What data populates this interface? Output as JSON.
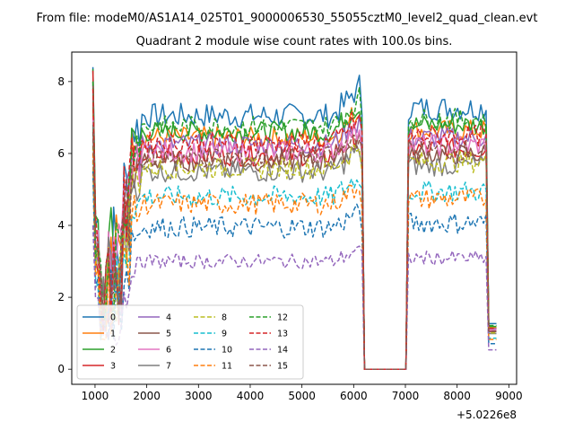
{
  "suptitle": "From file: modeM0/AS1A14_025T01_9000006530_55055cztM0_level2_quad_clean.evt",
  "chart_data": {
    "type": "line",
    "title": "Quadrant 2 module wise count rates with 100.0s bins.",
    "xlabel": "",
    "ylabel": "",
    "x_offset_label": "+5.0226e8",
    "xlim": [
      550,
      9150
    ],
    "ylim": [
      -0.42,
      8.82
    ],
    "xticks": [
      1000,
      2000,
      3000,
      4000,
      5000,
      6000,
      7000,
      8000,
      9000
    ],
    "yticks": [
      0,
      2,
      4,
      6,
      8
    ],
    "grid": false,
    "legend": {
      "placement": "lower-left",
      "columns": 4
    },
    "series": [
      {
        "name": "0",
        "color": "#1f77b4",
        "dash": "solid",
        "level": 7.05,
        "first": 8.4,
        "amp": 0.35
      },
      {
        "name": "1",
        "color": "#ff7f0e",
        "dash": "solid",
        "level": 6.45,
        "first": 7.3,
        "amp": 0.3
      },
      {
        "name": "2",
        "color": "#2ca02c",
        "dash": "solid",
        "level": 6.6,
        "first": 8.35,
        "amp": 0.3
      },
      {
        "name": "3",
        "color": "#d62728",
        "dash": "solid",
        "level": 5.95,
        "first": 8.3,
        "amp": 0.3
      },
      {
        "name": "4",
        "color": "#9467bd",
        "dash": "solid",
        "level": 6.25,
        "first": 7.9,
        "amp": 0.3
      },
      {
        "name": "5",
        "color": "#8c564b",
        "dash": "solid",
        "level": 5.8,
        "first": 8.0,
        "amp": 0.3
      },
      {
        "name": "6",
        "color": "#e377c2",
        "dash": "solid",
        "level": 6.05,
        "first": 7.0,
        "amp": 0.3
      },
      {
        "name": "7",
        "color": "#7f7f7f",
        "dash": "solid",
        "level": 5.5,
        "first": 6.8,
        "amp": 0.3
      },
      {
        "name": "8",
        "color": "#bcbd22",
        "dash": "dashed",
        "level": 5.6,
        "first": 6.2,
        "amp": 0.3
      },
      {
        "name": "9",
        "color": "#17becf",
        "dash": "dashed",
        "level": 4.8,
        "first": 5.8,
        "amp": 0.3
      },
      {
        "name": "10",
        "color": "#1f77b4",
        "dash": "dashed",
        "level": 3.95,
        "first": 5.5,
        "amp": 0.3
      },
      {
        "name": "11",
        "color": "#ff7f0e",
        "dash": "dashed",
        "level": 4.6,
        "first": 6.0,
        "amp": 0.3
      },
      {
        "name": "12",
        "color": "#2ca02c",
        "dash": "dashed",
        "level": 6.75,
        "first": 8.0,
        "amp": 0.3
      },
      {
        "name": "13",
        "color": "#d62728",
        "dash": "dashed",
        "level": 6.3,
        "first": 7.8,
        "amp": 0.3
      },
      {
        "name": "14",
        "color": "#9467bd",
        "dash": "dashed",
        "level": 3.0,
        "first": 4.0,
        "amp": 0.2
      },
      {
        "name": "15",
        "color": "#8c564b",
        "dash": "dashed",
        "level": 5.9,
        "first": 6.6,
        "amp": 0.3
      }
    ]
  }
}
